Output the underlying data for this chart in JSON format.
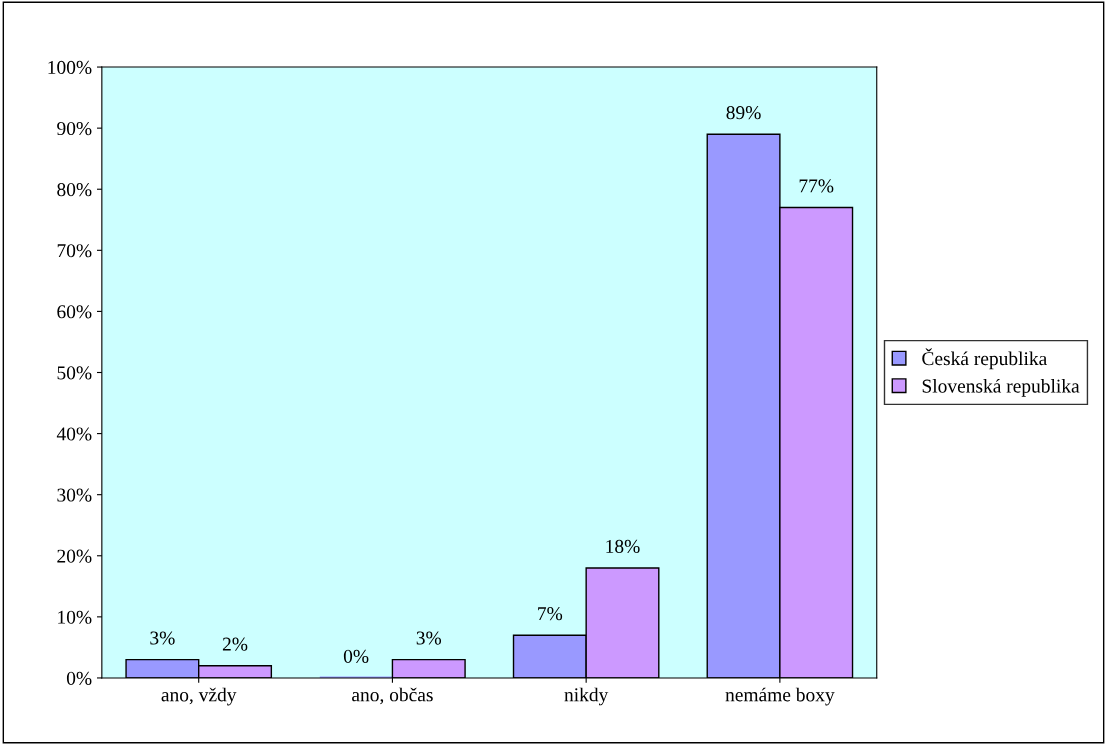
{
  "chart_data": {
    "type": "bar",
    "categories": [
      "ano, vždy",
      "ano, občas",
      "nikdy",
      "nemáme boxy"
    ],
    "series": [
      {
        "name": "Česká republika",
        "color": "#9999ff",
        "values": [
          3,
          0,
          7,
          89
        ],
        "value_labels": [
          "3%",
          "0%",
          "7%",
          "89%"
        ]
      },
      {
        "name": "Slovenská republika",
        "color": "#cc99ff",
        "values": [
          2,
          3,
          18,
          77
        ],
        "value_labels": [
          "2%",
          "3%",
          "18%",
          "77%"
        ]
      }
    ],
    "ylim": [
      0,
      100
    ],
    "yticks": [
      {
        "value": 0,
        "label": "0%"
      },
      {
        "value": 10,
        "label": "10%"
      },
      {
        "value": 20,
        "label": "20%"
      },
      {
        "value": 30,
        "label": "30%"
      },
      {
        "value": 40,
        "label": "40%"
      },
      {
        "value": 50,
        "label": "50%"
      },
      {
        "value": 60,
        "label": "60%"
      },
      {
        "value": 70,
        "label": "70%"
      },
      {
        "value": 80,
        "label": "80%"
      },
      {
        "value": 90,
        "label": "90%"
      },
      {
        "value": 100,
        "label": "100%"
      }
    ],
    "grid": false,
    "legend": "right"
  }
}
